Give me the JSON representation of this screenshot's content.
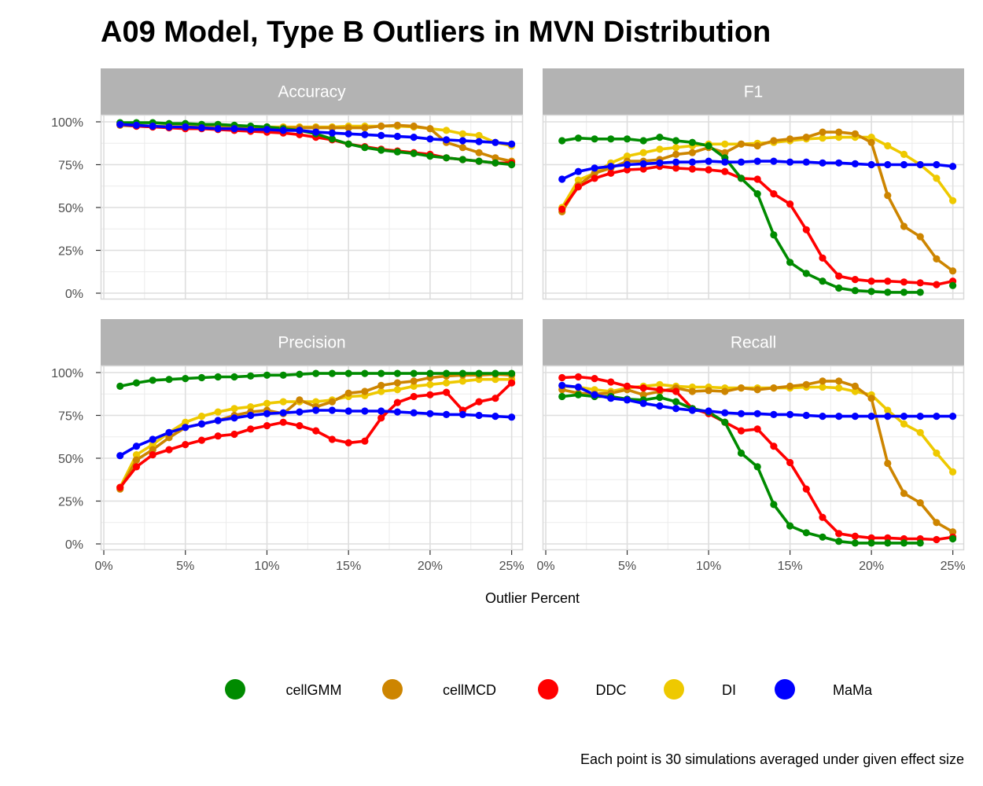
{
  "chart_data": {
    "type": "line",
    "title": "A09 Model, Type B Outliers in MVN Distribution",
    "xlabel": "Outlier Percent",
    "ylabel": "",
    "caption": "Each point is 30 simulations averaged under given effect size",
    "x": [
      1,
      2,
      3,
      4,
      5,
      6,
      7,
      8,
      9,
      10,
      11,
      12,
      13,
      14,
      15,
      16,
      17,
      18,
      19,
      20,
      21,
      22,
      23,
      24,
      25
    ],
    "xlim": [
      0,
      25.5
    ],
    "ylim": [
      0,
      100
    ],
    "x_ticks": [
      0,
      5,
      10,
      15,
      20,
      25
    ],
    "x_tick_labels": [
      "0%",
      "5%",
      "10%",
      "15%",
      "20%",
      "25%"
    ],
    "y_ticks": [
      0,
      25,
      50,
      75,
      100
    ],
    "y_tick_labels": [
      "0%",
      "25%",
      "50%",
      "75%",
      "100%"
    ],
    "legend": {
      "position": "bottom",
      "entries": [
        {
          "name": "cellGMM",
          "color": "#008B00"
        },
        {
          "name": "cellMCD",
          "color": "#CD8500"
        },
        {
          "name": "DDC",
          "color": "#FF0000"
        },
        {
          "name": "DI",
          "color": "#EEC900"
        },
        {
          "name": "MaMa",
          "color": "#0000FF"
        }
      ]
    },
    "panels": [
      {
        "title": "Accuracy",
        "series": [
          {
            "name": "DI",
            "values": [
              98.5,
              98,
              97.5,
              97.5,
              97.5,
              97.5,
              97.5,
              97.5,
              97,
              97,
              97,
              97,
              97,
              97,
              97.5,
              97.5,
              97.5,
              97.5,
              97,
              96,
              95,
              93,
              92,
              88,
              86
            ]
          },
          {
            "name": "cellMCD",
            "values": [
              98,
              97.5,
              97,
              97,
              97,
              97,
              97,
              97,
              96.5,
              96.5,
              96.5,
              96.5,
              96.5,
              96.5,
              96.5,
              96.5,
              97.5,
              98,
              97.5,
              96,
              88,
              85,
              82,
              79,
              77
            ]
          },
          {
            "name": "DDC",
            "values": [
              98.5,
              97.5,
              97,
              96.5,
              96,
              96,
              95.5,
              95,
              94.5,
              94,
              93.5,
              92.5,
              91,
              89.5,
              87,
              85.5,
              84,
              83,
              82,
              81,
              79,
              78,
              77,
              76,
              76
            ]
          },
          {
            "name": "cellGMM",
            "values": [
              99.5,
              99.5,
              99.5,
              99,
              99,
              98.5,
              98.5,
              98,
              97.5,
              97,
              96,
              95,
              93,
              90,
              87,
              85,
              83.5,
              82.5,
              81.5,
              80,
              79,
              78,
              77,
              76,
              75
            ]
          },
          {
            "name": "MaMa",
            "values": [
              98.5,
              98,
              97.5,
              97,
              97,
              96.5,
              96,
              96,
              95.5,
              95.5,
              95,
              95,
              94,
              93.5,
              93,
              92.5,
              92,
              91.5,
              91,
              90,
              89.5,
              89,
              88.5,
              88,
              87
            ]
          }
        ]
      },
      {
        "title": "F1",
        "series": [
          {
            "name": "DI",
            "values": [
              50,
              66,
              70,
              76,
              80,
              82,
              84,
              85,
              86,
              87,
              87,
              87,
              87.5,
              88,
              89,
              90,
              90.5,
              91,
              91,
              91,
              86,
              81,
              75,
              67,
              54
            ]
          },
          {
            "name": "cellMCD",
            "values": [
              47.5,
              63,
              70,
              73,
              77,
              77,
              78,
              81,
              82,
              85,
              82,
              87,
              86,
              89,
              90,
              91,
              94,
              94,
              93,
              88,
              57,
              39,
              33,
              20,
              13
            ]
          },
          {
            "name": "DDC",
            "values": [
              49,
              62,
              67,
              70,
              72,
              72.5,
              74,
              73,
              72.5,
              72,
              71,
              67,
              66.5,
              58,
              52,
              37,
              20.5,
              10,
              8,
              7,
              7,
              6.5,
              6,
              5,
              7
            ]
          },
          {
            "name": "cellGMM",
            "values": [
              89,
              90.5,
              90,
              90,
              90,
              89,
              91,
              89,
              88,
              86,
              79,
              67,
              58,
              34,
              18,
              11.5,
              7,
              3,
              1.5,
              1,
              0.5,
              0.5,
              0.5,
              null,
              4.5
            ]
          },
          {
            "name": "MaMa",
            "values": [
              66.5,
              71,
              73,
              74,
              75,
              75.5,
              76,
              76.5,
              76.5,
              77,
              76.5,
              76.5,
              77,
              77,
              76.5,
              76.5,
              76,
              76,
              75.5,
              75,
              75,
              75,
              75,
              75,
              74
            ]
          }
        ]
      },
      {
        "title": "Precision",
        "series": [
          {
            "name": "DI",
            "values": [
              33,
              52,
              58,
              65,
              71,
              74.5,
              77,
              79,
              80,
              82,
              83,
              83,
              83,
              84,
              86,
              86.5,
              89,
              90,
              92,
              93,
              94,
              95,
              96,
              96,
              96
            ]
          },
          {
            "name": "cellMCD",
            "values": [
              32,
              49,
              55,
              62,
              68,
              70,
              72,
              75,
              77,
              78,
              76,
              84,
              80,
              83,
              88,
              89,
              92.5,
              94,
              95,
              97,
              98,
              98.5,
              98.5,
              99,
              98.5
            ]
          },
          {
            "name": "DDC",
            "values": [
              33,
              45,
              52,
              55,
              58,
              60.5,
              63,
              64,
              67,
              69,
              71,
              69,
              66,
              61,
              59,
              60,
              73.5,
              82.5,
              86,
              87,
              88.5,
              78,
              83,
              85,
              94
            ]
          },
          {
            "name": "cellGMM",
            "values": [
              92,
              94,
              95.5,
              96,
              96.5,
              97,
              97.5,
              97.5,
              98,
              98.5,
              98.5,
              99,
              99.5,
              99.5,
              99.5,
              99.5,
              99.5,
              99.5,
              99.5,
              99.5,
              99.5,
              99.5,
              99.5,
              99.5,
              99.5
            ]
          },
          {
            "name": "MaMa",
            "values": [
              51.5,
              57,
              61,
              65,
              68,
              70,
              72,
              73.5,
              75,
              76,
              76.5,
              77,
              78,
              78,
              77.5,
              77.5,
              77.5,
              77,
              76.5,
              76,
              75.5,
              75.5,
              75,
              74.5,
              74
            ]
          }
        ]
      },
      {
        "title": "Recall",
        "series": [
          {
            "name": "DI",
            "values": [
              92,
              91.5,
              90,
              89,
              91,
              92,
              93,
              92,
              91.5,
              91.5,
              91,
              91,
              91,
              91,
              91,
              91.5,
              91.5,
              91,
              89,
              87,
              78,
              70,
              65,
              53,
              42
            ]
          },
          {
            "name": "cellMCD",
            "values": [
              90,
              88,
              87.5,
              88,
              90,
              87,
              89,
              91,
              89,
              89.5,
              89,
              91,
              90,
              91,
              92,
              93,
              95,
              95,
              92,
              85,
              47,
              29.5,
              24,
              12.5,
              7
            ]
          },
          {
            "name": "DDC",
            "values": [
              97,
              97.5,
              96.5,
              94.5,
              92,
              91,
              90,
              89,
              79,
              76,
              71,
              66,
              67,
              57,
              47.5,
              32,
              15.5,
              6,
              4.5,
              3.5,
              3.5,
              3,
              3,
              2.5,
              4
            ]
          },
          {
            "name": "cellGMM",
            "values": [
              86,
              87,
              86,
              86,
              84.5,
              84,
              85.5,
              83,
              79,
              77,
              71,
              53,
              45,
              23,
              10.5,
              6.5,
              4,
              1.5,
              0.5,
              0.5,
              0.5,
              0.5,
              0.5,
              null,
              3
            ]
          },
          {
            "name": "MaMa",
            "values": [
              92.5,
              91.5,
              87,
              85,
              84,
              82,
              80.5,
              79,
              78,
              77.5,
              76.5,
              76,
              76,
              75.5,
              75.5,
              75,
              74.5,
              74.5,
              74.5,
              74.5,
              74.5,
              74.5,
              74.5,
              74.5,
              74.5
            ]
          }
        ]
      }
    ]
  }
}
